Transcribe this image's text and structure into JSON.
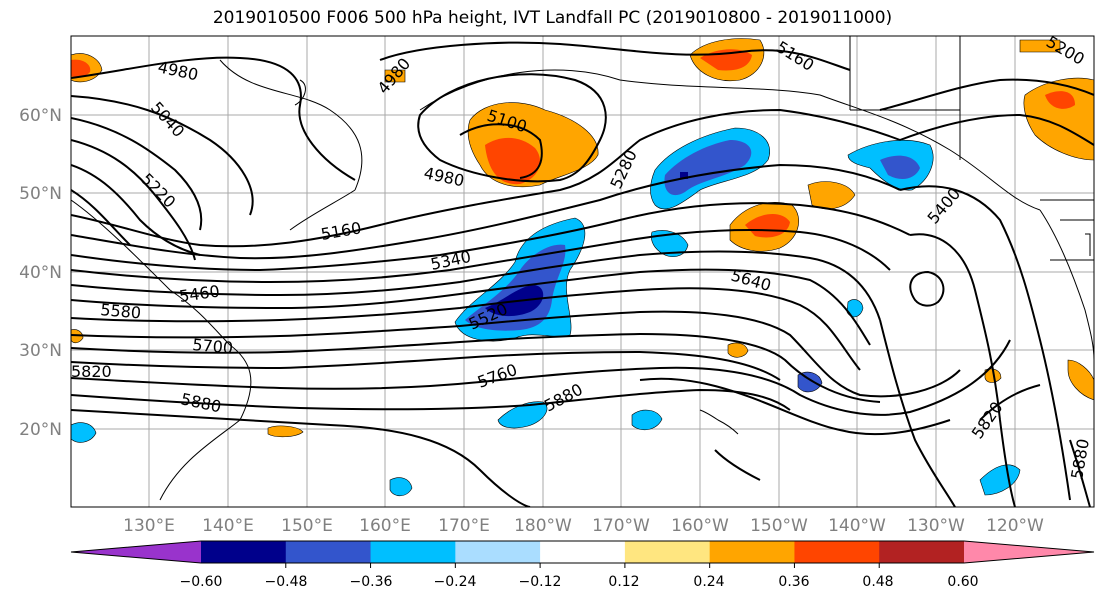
{
  "title": "2019010500 F006 500 hPa height, IVT Landfall PC (2019010800 - 2019011000)",
  "lat_ticks": [
    "60°N",
    "50°N",
    "40°N",
    "30°N",
    "20°N"
  ],
  "lon_ticks": [
    "130°E",
    "140°E",
    "150°E",
    "160°E",
    "170°E",
    "180°W",
    "170°W",
    "160°W",
    "150°W",
    "140°W",
    "130°W",
    "120°W"
  ],
  "contour_labels": [
    {
      "text": "4980",
      "t": "l4980a"
    },
    {
      "text": "5040",
      "t": "l5040"
    },
    {
      "text": "4980",
      "t": "l4980b"
    },
    {
      "text": "5100",
      "t": "l5100"
    },
    {
      "text": "4980",
      "t": "l4980c"
    },
    {
      "text": "5160",
      "t": "l5160a"
    },
    {
      "text": "5200",
      "t": "l5200"
    },
    {
      "text": "5220",
      "t": "l5220"
    },
    {
      "text": "5160",
      "t": "l5160b"
    },
    {
      "text": "5280",
      "t": "l5280"
    },
    {
      "text": "5340",
      "t": "l5340"
    },
    {
      "text": "5460",
      "t": "l5460"
    },
    {
      "text": "5580",
      "t": "l5580"
    },
    {
      "text": "5520",
      "t": "l5520"
    },
    {
      "text": "5640",
      "t": "l5640"
    },
    {
      "text": "5400",
      "t": "l5400"
    },
    {
      "text": "5700",
      "t": "l5700"
    },
    {
      "text": "5760",
      "t": "l5760"
    },
    {
      "text": "5820",
      "t": "l5820a"
    },
    {
      "text": "5880",
      "t": "l5880a"
    },
    {
      "text": "5880",
      "t": "l5880b"
    },
    {
      "text": "5820",
      "t": "l5820b"
    },
    {
      "text": "5880",
      "t": "l5880c"
    }
  ],
  "colorbar": {
    "ticks": [
      "−0.60",
      "−0.48",
      "−0.36",
      "−0.24",
      "−0.12",
      "0.12",
      "0.24",
      "0.36",
      "0.48",
      "0.60"
    ],
    "colors": [
      "#9933cc",
      "#00008b",
      "#3355cc",
      "#00bfff",
      "#aaddff",
      "#ffffff",
      "#ffe680",
      "#ffa500",
      "#ff4500",
      "#b22222",
      "#ff88aa"
    ]
  }
}
